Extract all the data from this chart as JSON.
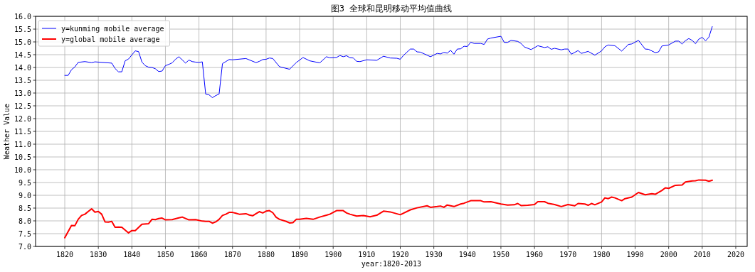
{
  "chart_data": {
    "type": "line",
    "title": "图3 全球和昆明移动平均值曲线",
    "xlabel": "year:1820-2013",
    "ylabel": "Weather Value",
    "grid": true,
    "legend": "top left",
    "line_style": "solid",
    "xlim": [
      1811.3,
      2023.4
    ],
    "ylim": [
      7.0,
      16.0
    ],
    "xticks": [
      1820,
      1830,
      1840,
      1850,
      1860,
      1870,
      1880,
      1890,
      1900,
      1910,
      1920,
      1930,
      1940,
      1950,
      1960,
      1970,
      1980,
      1990,
      2000,
      2010,
      2020
    ],
    "yticks": [
      {
        "value": 7,
        "label": "7.0"
      },
      {
        "value": 7.5,
        "label": "7.5"
      },
      {
        "value": 8,
        "label": "8.0"
      },
      {
        "value": 8.5,
        "label": "8.5"
      },
      {
        "value": 9,
        "label": "9.0"
      },
      {
        "value": 9.5,
        "label": "9.5"
      },
      {
        "value": 10,
        "label": "10.0"
      },
      {
        "value": 10.5,
        "label": "10.5"
      },
      {
        "value": 11,
        "label": "11.0"
      },
      {
        "value": 11.5,
        "label": "11.5"
      },
      {
        "value": 12,
        "label": "12.0"
      },
      {
        "value": 12.5,
        "label": "12.5"
      },
      {
        "value": 13,
        "label": "13.0"
      },
      {
        "value": 13.5,
        "label": "13.5"
      },
      {
        "value": 14,
        "label": "14.0"
      },
      {
        "value": 14.5,
        "label": "14.5"
      },
      {
        "value": 15,
        "label": "15.0"
      },
      {
        "value": 15.5,
        "label": "15.5"
      },
      {
        "value": 16,
        "label": "16.0"
      }
    ],
    "series": [
      {
        "name": "y=kunming mobile average",
        "color": "#0000ff",
        "x": [
          1820,
          1821,
          1822,
          1823,
          1824,
          1826,
          1828,
          1829,
          1834,
          1835,
          1836,
          1837,
          1838,
          1839,
          1840,
          1841,
          1842,
          1843,
          1844,
          1845,
          1846,
          1847,
          1848,
          1849,
          1850,
          1851,
          1852,
          1853,
          1854,
          1855,
          1856,
          1857,
          1858,
          1859,
          1860,
          1861,
          1862,
          1863,
          1864,
          1865,
          1866,
          1867,
          1868,
          1869,
          1870,
          1874,
          1877,
          1878,
          1879,
          1880,
          1881,
          1882,
          1884,
          1887,
          1889,
          1891,
          1893,
          1896,
          1898,
          1899,
          1901,
          1902,
          1903,
          1904,
          1905,
          1906,
          1907,
          1908,
          1910,
          1913,
          1915,
          1917,
          1919,
          1920,
          1921,
          1923,
          1924,
          1925,
          1926,
          1929,
          1931,
          1932,
          1933,
          1934,
          1935,
          1936,
          1937,
          1938,
          1939,
          1940,
          1941,
          1942,
          1944,
          1945,
          1946,
          1947,
          1950,
          1951,
          1952,
          1953,
          1955,
          1956,
          1957,
          1959,
          1961,
          1963,
          1964,
          1965,
          1966,
          1968,
          1969,
          1970,
          1971,
          1973,
          1974,
          1976,
          1978,
          1980,
          1981,
          1982,
          1984,
          1986,
          1988,
          1989,
          1991,
          1993,
          1994,
          1996,
          1997,
          1998,
          2000,
          2002,
          2003,
          2004,
          2005,
          2006,
          2007,
          2008,
          2009,
          2010,
          2011,
          2012,
          2013
        ],
        "values": [
          13.69,
          13.69,
          13.91,
          14.02,
          14.2,
          14.23,
          14.19,
          14.22,
          14.17,
          13.96,
          13.83,
          13.83,
          14.26,
          14.33,
          14.49,
          14.65,
          14.62,
          14.21,
          14.07,
          14.01,
          14.0,
          13.95,
          13.84,
          13.86,
          14.07,
          14.12,
          14.18,
          14.32,
          14.42,
          14.3,
          14.17,
          14.29,
          14.23,
          14.21,
          14.2,
          14.22,
          12.96,
          12.93,
          12.82,
          12.9,
          12.96,
          14.15,
          14.23,
          14.31,
          14.3,
          14.35,
          14.19,
          14.24,
          14.31,
          14.32,
          14.37,
          14.35,
          14.03,
          13.93,
          14.19,
          14.39,
          14.26,
          14.18,
          14.42,
          14.38,
          14.39,
          14.47,
          14.42,
          14.46,
          14.38,
          14.37,
          14.24,
          14.23,
          14.3,
          14.28,
          14.44,
          14.37,
          14.36,
          14.32,
          14.48,
          14.72,
          14.72,
          14.61,
          14.6,
          14.42,
          14.55,
          14.53,
          14.59,
          14.56,
          14.67,
          14.52,
          14.72,
          14.73,
          14.83,
          14.82,
          14.99,
          14.94,
          14.94,
          14.9,
          15.11,
          15.15,
          15.22,
          14.98,
          14.98,
          15.06,
          15.02,
          14.94,
          14.8,
          14.7,
          14.85,
          14.78,
          14.81,
          14.71,
          14.75,
          14.69,
          14.72,
          14.72,
          14.52,
          14.66,
          14.55,
          14.63,
          14.48,
          14.65,
          14.81,
          14.88,
          14.85,
          14.64,
          14.9,
          14.92,
          15.06,
          14.72,
          14.71,
          14.58,
          14.61,
          14.84,
          14.88,
          15.03,
          15.03,
          14.92,
          15.05,
          15.13,
          15.06,
          14.93,
          15.11,
          15.18,
          15.04,
          15.19,
          15.6
        ]
      },
      {
        "name": "y=global mobile average",
        "color": "#ff0000",
        "x": [
          1820,
          1822,
          1823,
          1824,
          1825,
          1826,
          1827,
          1828,
          1829,
          1830,
          1831,
          1832,
          1833,
          1834,
          1835,
          1836,
          1837,
          1839,
          1840,
          1841,
          1843,
          1845,
          1846,
          1847,
          1848,
          1849,
          1850,
          1852,
          1854,
          1855,
          1857,
          1859,
          1861,
          1862,
          1863,
          1864,
          1865,
          1866,
          1867,
          1868,
          1869,
          1870,
          1871,
          1872,
          1874,
          1875,
          1876,
          1877,
          1878,
          1879,
          1880,
          1881,
          1882,
          1883,
          1884,
          1886,
          1887,
          1888,
          1889,
          1890,
          1892,
          1894,
          1896,
          1898,
          1899,
          1901,
          1903,
          1904,
          1905,
          1907,
          1909,
          1911,
          1913,
          1915,
          1917,
          1920,
          1923,
          1925,
          1928,
          1929,
          1931,
          1932,
          1933,
          1934,
          1936,
          1938,
          1939,
          1941,
          1942,
          1944,
          1945,
          1947,
          1950,
          1952,
          1954,
          1955,
          1956,
          1958,
          1960,
          1961,
          1963,
          1964,
          1966,
          1968,
          1970,
          1972,
          1973,
          1975,
          1976,
          1977,
          1978,
          1980,
          1981,
          1982,
          1983,
          1984,
          1986,
          1987,
          1989,
          1991,
          1993,
          1995,
          1996,
          1998,
          1999,
          2000,
          2002,
          2004,
          2005,
          2007,
          2008,
          2009,
          2011,
          2012,
          2013
        ],
        "values": [
          7.34,
          7.82,
          7.81,
          8.06,
          8.21,
          8.26,
          8.37,
          8.47,
          8.34,
          8.37,
          8.26,
          7.96,
          7.95,
          7.98,
          7.75,
          7.76,
          7.75,
          7.53,
          7.62,
          7.62,
          7.87,
          7.89,
          8.06,
          8.05,
          8.09,
          8.11,
          8.04,
          8.05,
          8.12,
          8.15,
          8.04,
          8.05,
          7.99,
          7.98,
          7.98,
          7.91,
          7.96,
          8.06,
          8.21,
          8.26,
          8.33,
          8.33,
          8.3,
          8.26,
          8.28,
          8.23,
          8.2,
          8.28,
          8.36,
          8.31,
          8.38,
          8.4,
          8.32,
          8.14,
          8.06,
          7.98,
          7.92,
          7.93,
          8.06,
          8.06,
          8.1,
          8.06,
          8.15,
          8.22,
          8.26,
          8.4,
          8.4,
          8.31,
          8.26,
          8.19,
          8.21,
          8.16,
          8.22,
          8.38,
          8.35,
          8.24,
          8.43,
          8.51,
          8.59,
          8.53,
          8.56,
          8.58,
          8.53,
          8.62,
          8.56,
          8.66,
          8.69,
          8.79,
          8.79,
          8.79,
          8.74,
          8.75,
          8.66,
          8.62,
          8.63,
          8.68,
          8.6,
          8.61,
          8.64,
          8.75,
          8.75,
          8.69,
          8.64,
          8.56,
          8.64,
          8.59,
          8.68,
          8.66,
          8.61,
          8.68,
          8.63,
          8.74,
          8.9,
          8.87,
          8.93,
          8.9,
          8.79,
          8.87,
          8.93,
          9.11,
          9.02,
          9.06,
          9.04,
          9.19,
          9.29,
          9.27,
          9.39,
          9.4,
          9.52,
          9.56,
          9.57,
          9.6,
          9.59,
          9.55,
          9.59
        ]
      }
    ]
  }
}
